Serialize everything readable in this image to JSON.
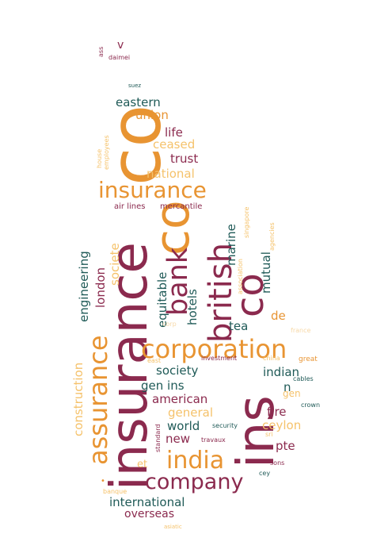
{
  "palette": {
    "maroon": "#8b2a4e",
    "teal": "#1f5a57",
    "orange": "#e89432",
    "light_orange": "#f5c26b",
    "pale": "#f7d9a8"
  },
  "words": [
    {
      "id": "insurance",
      "text": "insurance",
      "color": "maroon"
    },
    {
      "id": "co-big",
      "text": "co",
      "color": "orange"
    },
    {
      "id": "ins",
      "text": "ins",
      "color": "maroon"
    },
    {
      "id": "co-2",
      "text": "co",
      "color": "orange"
    },
    {
      "id": "co-3",
      "text": "co",
      "color": "maroon"
    },
    {
      "id": "british",
      "text": "british",
      "color": "maroon"
    },
    {
      "id": "bank",
      "text": "bank",
      "color": "maroon"
    },
    {
      "id": "corporation",
      "text": "corporation",
      "color": "orange"
    },
    {
      "id": "insurance-h",
      "text": "insurance",
      "color": "orange"
    },
    {
      "id": "assurance",
      "text": "assurance",
      "color": "orange"
    },
    {
      "id": "india",
      "text": "india",
      "color": "orange"
    },
    {
      "id": "company",
      "text": "company",
      "color": "maroon"
    },
    {
      "id": "international",
      "text": "international",
      "color": "teal"
    },
    {
      "id": "overseas",
      "text": "overseas",
      "color": "maroon"
    },
    {
      "id": "eastern",
      "text": "eastern",
      "color": "teal"
    },
    {
      "id": "union",
      "text": "union",
      "color": "orange"
    },
    {
      "id": "life",
      "text": "life",
      "color": "maroon"
    },
    {
      "id": "ceased",
      "text": "ceased",
      "color": "light_orange"
    },
    {
      "id": "trust",
      "text": "trust",
      "color": "maroon"
    },
    {
      "id": "national",
      "text": "national",
      "color": "light_orange"
    },
    {
      "id": "marine",
      "text": "marine",
      "color": "teal"
    },
    {
      "id": "mutual",
      "text": "mutual",
      "color": "teal"
    },
    {
      "id": "equitable",
      "text": "equitable",
      "color": "teal"
    },
    {
      "id": "hotels",
      "text": "hotels",
      "color": "teal"
    },
    {
      "id": "london",
      "text": "london",
      "color": "maroon"
    },
    {
      "id": "societe",
      "text": "societe",
      "color": "light_orange"
    },
    {
      "id": "engineering",
      "text": "engineering",
      "color": "teal"
    },
    {
      "id": "construction",
      "text": "construction",
      "color": "light_orange"
    },
    {
      "id": "tea",
      "text": "tea",
      "color": "teal"
    },
    {
      "id": "de",
      "text": "de",
      "color": "orange"
    },
    {
      "id": "society",
      "text": "society",
      "color": "teal"
    },
    {
      "id": "indian",
      "text": "indian",
      "color": "teal"
    },
    {
      "id": "gen-ins",
      "text": "gen ins",
      "color": "teal"
    },
    {
      "id": "n",
      "text": "n",
      "color": "teal"
    },
    {
      "id": "gen",
      "text": "gen",
      "color": "light_orange"
    },
    {
      "id": "american",
      "text": "american",
      "color": "maroon"
    },
    {
      "id": "general",
      "text": "general",
      "color": "light_orange"
    },
    {
      "id": "fire",
      "text": "fire",
      "color": "maroon"
    },
    {
      "id": "world",
      "text": "world",
      "color": "teal"
    },
    {
      "id": "ceylon",
      "text": "ceylon",
      "color": "light_orange"
    },
    {
      "id": "new",
      "text": "new",
      "color": "maroon"
    },
    {
      "id": "pte",
      "text": "pte",
      "color": "maroon"
    },
    {
      "id": "et",
      "text": "et",
      "color": "light_orange"
    },
    {
      "id": "v",
      "text": "v",
      "color": "maroon"
    },
    {
      "id": "ass",
      "text": "ass",
      "color": "maroon"
    },
    {
      "id": "daimei",
      "text": "daimei",
      "color": "maroon"
    },
    {
      "id": "suez",
      "text": "suez",
      "color": "teal"
    },
    {
      "id": "air-lines",
      "text": "air lines",
      "color": "maroon"
    },
    {
      "id": "mercantile",
      "text": "mercantile",
      "color": "maroon"
    },
    {
      "id": "house",
      "text": "house",
      "color": "light_orange"
    },
    {
      "id": "employees",
      "text": "employees",
      "color": "light_orange"
    },
    {
      "id": "singapore",
      "text": "singapore",
      "color": "light_orange"
    },
    {
      "id": "agencies",
      "text": "agencies",
      "color": "light_orange"
    },
    {
      "id": "association",
      "text": "association",
      "color": "light_orange"
    },
    {
      "id": "corp",
      "text": "corp",
      "color": "pale"
    },
    {
      "id": "france",
      "text": "france",
      "color": "pale"
    },
    {
      "id": "east",
      "text": "east",
      "color": "light_orange"
    },
    {
      "id": "investment",
      "text": "investment",
      "color": "maroon"
    },
    {
      "id": "china",
      "text": "china",
      "color": "light_orange"
    },
    {
      "id": "great",
      "text": "great",
      "color": "orange"
    },
    {
      "id": "cables",
      "text": "cables",
      "color": "teal"
    },
    {
      "id": "crown",
      "text": "crown",
      "color": "teal"
    },
    {
      "id": "standard",
      "text": "standard",
      "color": "maroon"
    },
    {
      "id": "security",
      "text": "security",
      "color": "teal"
    },
    {
      "id": "travaux",
      "text": "travaux",
      "color": "maroon"
    },
    {
      "id": "sri",
      "text": "sri",
      "color": "light_orange"
    },
    {
      "id": "sons",
      "text": "sons",
      "color": "maroon"
    },
    {
      "id": "cey",
      "text": "cey",
      "color": "teal"
    },
    {
      "id": "banque",
      "text": "banque",
      "color": "light_orange"
    },
    {
      "id": "asiatic",
      "text": "asiatic",
      "color": "light_orange"
    },
    {
      "id": "dot",
      "text": "•",
      "color": "orange"
    }
  ]
}
